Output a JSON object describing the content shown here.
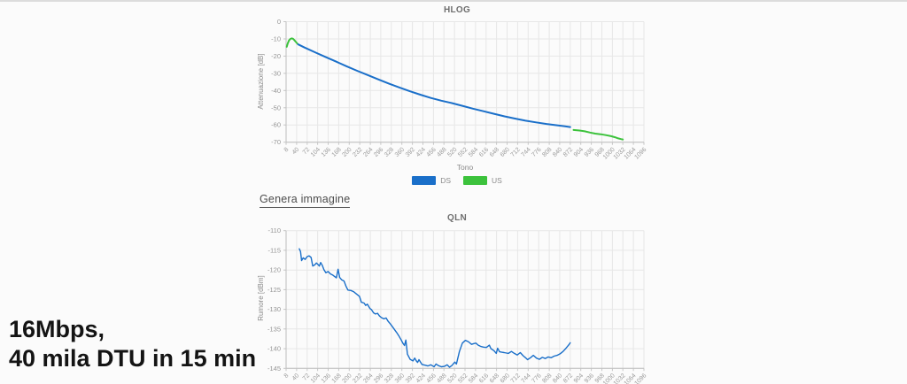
{
  "page": {
    "background": "#fbfbfb",
    "top_border_color": "#dcdcdc"
  },
  "annotation": {
    "line1": "16Mbps,",
    "line2": "40 mila DTU in 15 min"
  },
  "genera_link": {
    "label": "Genera immagine"
  },
  "chart_data": [
    {
      "id": "hlog",
      "type": "line",
      "title": "HLOG",
      "xlabel": "Tono",
      "ylabel": "Attenuazione [dB]",
      "xlim": [
        8,
        1096
      ],
      "ylim": [
        -70,
        0
      ],
      "grid": true,
      "x_ticks": [
        8,
        40,
        72,
        104,
        136,
        168,
        200,
        232,
        264,
        296,
        328,
        360,
        392,
        424,
        456,
        488,
        520,
        552,
        584,
        616,
        648,
        680,
        712,
        744,
        776,
        808,
        840,
        872,
        904,
        936,
        968,
        1000,
        1032,
        1064,
        1096
      ],
      "y_ticks": [
        0,
        -10,
        -20,
        -30,
        -40,
        -50,
        -60,
        -70
      ],
      "legend": {
        "position": "bottom",
        "entries": [
          {
            "name": "DS",
            "color": "#1a6fc9"
          },
          {
            "name": "US",
            "color": "#3cc23c"
          }
        ]
      },
      "series": [
        {
          "name": "US",
          "color": "#3cc23c",
          "points": [
            [
              10,
              -14.6
            ],
            [
              13,
              -12.6
            ],
            [
              17,
              -10.9
            ],
            [
              21,
              -10.0
            ],
            [
              25,
              -9.7
            ],
            [
              29,
              -9.9
            ],
            [
              33,
              -10.7
            ],
            [
              37,
              -11.6
            ],
            [
              43,
              -12.9
            ]
          ]
        },
        {
          "name": "DS",
          "color": "#1a6fc9",
          "points": [
            [
              45,
              -13.2
            ],
            [
              64,
              -15.0
            ],
            [
              96,
              -17.8
            ],
            [
              128,
              -20.5
            ],
            [
              160,
              -23.2
            ],
            [
              192,
              -25.9
            ],
            [
              224,
              -28.5
            ],
            [
              256,
              -31.0
            ],
            [
              288,
              -33.5
            ],
            [
              320,
              -35.9
            ],
            [
              352,
              -38.2
            ],
            [
              384,
              -40.4
            ],
            [
              416,
              -42.4
            ],
            [
              448,
              -44.3
            ],
            [
              480,
              -45.9
            ],
            [
              512,
              -47.3
            ],
            [
              544,
              -48.9
            ],
            [
              576,
              -50.5
            ],
            [
              608,
              -52.0
            ],
            [
              640,
              -53.5
            ],
            [
              672,
              -55.0
            ],
            [
              704,
              -56.3
            ],
            [
              736,
              -57.5
            ],
            [
              768,
              -58.5
            ],
            [
              800,
              -59.4
            ],
            [
              832,
              -60.2
            ],
            [
              856,
              -60.8
            ],
            [
              872,
              -61.2
            ]
          ]
        },
        {
          "name": "US",
          "color": "#3cc23c",
          "points": [
            [
              882,
              -62.9
            ],
            [
              900,
              -63.2
            ],
            [
              916,
              -63.7
            ],
            [
              932,
              -64.4
            ],
            [
              948,
              -65.0
            ],
            [
              964,
              -65.4
            ],
            [
              980,
              -65.9
            ],
            [
              996,
              -66.5
            ],
            [
              1008,
              -67.1
            ],
            [
              1018,
              -67.8
            ],
            [
              1026,
              -68.2
            ],
            [
              1032,
              -68.4
            ]
          ]
        }
      ]
    },
    {
      "id": "qln",
      "type": "line",
      "title": "QLN",
      "xlabel": "",
      "ylabel": "Rumore [dBm]",
      "xlim": [
        8,
        1096
      ],
      "ylim": [
        -145,
        -110
      ],
      "grid": true,
      "x_ticks": [
        8,
        40,
        72,
        104,
        136,
        168,
        200,
        232,
        264,
        296,
        328,
        360,
        392,
        424,
        456,
        488,
        520,
        552,
        584,
        616,
        648,
        680,
        712,
        744,
        776,
        808,
        840,
        872,
        904,
        936,
        968,
        1000,
        1032,
        1064,
        1096
      ],
      "y_ticks": [
        -110,
        -115,
        -120,
        -125,
        -130,
        -135,
        -140,
        -145
      ],
      "series": [
        {
          "name": "DS",
          "color": "#1a6fc9",
          "points": [
            [
              48,
              -114.6
            ],
            [
              52,
              -115.3
            ],
            [
              55,
              -117.6
            ],
            [
              60,
              -116.9
            ],
            [
              66,
              -117.3
            ],
            [
              72,
              -116.6
            ],
            [
              78,
              -116.4
            ],
            [
              84,
              -116.8
            ],
            [
              89,
              -119.0
            ],
            [
              95,
              -118.7
            ],
            [
              100,
              -118.2
            ],
            [
              105,
              -118.6
            ],
            [
              109,
              -119.0
            ],
            [
              113,
              -118.1
            ],
            [
              118,
              -118.8
            ],
            [
              123,
              -119.9
            ],
            [
              129,
              -120.7
            ],
            [
              136,
              -120.4
            ],
            [
              143,
              -121.0
            ],
            [
              150,
              -121.3
            ],
            [
              156,
              -121.7
            ],
            [
              161,
              -122.0
            ],
            [
              166,
              -119.8
            ],
            [
              171,
              -121.9
            ],
            [
              177,
              -122.5
            ],
            [
              184,
              -122.8
            ],
            [
              190,
              -124.1
            ],
            [
              196,
              -125.1
            ],
            [
              205,
              -125.2
            ],
            [
              213,
              -125.5
            ],
            [
              222,
              -126.1
            ],
            [
              231,
              -126.7
            ],
            [
              237,
              -128.2
            ],
            [
              245,
              -128.4
            ],
            [
              250,
              -129.0
            ],
            [
              255,
              -128.7
            ],
            [
              263,
              -129.8
            ],
            [
              268,
              -130.1
            ],
            [
              274,
              -130.9
            ],
            [
              280,
              -131.2
            ],
            [
              286,
              -131.0
            ],
            [
              292,
              -131.7
            ],
            [
              298,
              -132.1
            ],
            [
              305,
              -132.4
            ],
            [
              312,
              -132.2
            ],
            [
              318,
              -133.0
            ],
            [
              325,
              -133.7
            ],
            [
              332,
              -134.5
            ],
            [
              339,
              -135.3
            ],
            [
              344,
              -135.9
            ],
            [
              352,
              -136.9
            ],
            [
              358,
              -137.8
            ],
            [
              363,
              -138.6
            ],
            [
              368,
              -139.2
            ],
            [
              372,
              -137.8
            ],
            [
              377,
              -141.4
            ],
            [
              385,
              -142.7
            ],
            [
              394,
              -143.1
            ],
            [
              399,
              -142.4
            ],
            [
              404,
              -143.1
            ],
            [
              408,
              -143.5
            ],
            [
              412,
              -142.8
            ],
            [
              421,
              -144.0
            ],
            [
              430,
              -144.2
            ],
            [
              439,
              -144.4
            ],
            [
              448,
              -144.1
            ],
            [
              458,
              -144.6
            ],
            [
              464,
              -143.9
            ],
            [
              471,
              -144.3
            ],
            [
              480,
              -144.6
            ],
            [
              489,
              -144.5
            ],
            [
              498,
              -144.1
            ],
            [
              505,
              -144.7
            ],
            [
              512,
              -144.3
            ],
            [
              521,
              -143.4
            ],
            [
              526,
              -143.9
            ],
            [
              535,
              -140.7
            ],
            [
              544,
              -138.6
            ],
            [
              553,
              -137.9
            ],
            [
              562,
              -138.2
            ],
            [
              572,
              -138.9
            ],
            [
              579,
              -138.7
            ],
            [
              585,
              -138.6
            ],
            [
              592,
              -139.1
            ],
            [
              599,
              -139.4
            ],
            [
              608,
              -139.6
            ],
            [
              617,
              -139.7
            ],
            [
              626,
              -139.1
            ],
            [
              631,
              -140.0
            ],
            [
              635,
              -140.2
            ],
            [
              641,
              -140.6
            ],
            [
              647,
              -141.2
            ],
            [
              651,
              -139.9
            ],
            [
              657,
              -140.8
            ],
            [
              664,
              -140.9
            ],
            [
              671,
              -141.0
            ],
            [
              678,
              -141.1
            ],
            [
              684,
              -141.2
            ],
            [
              693,
              -140.7
            ],
            [
              702,
              -141.2
            ],
            [
              711,
              -141.6
            ],
            [
              720,
              -141.0
            ],
            [
              729,
              -141.8
            ],
            [
              736,
              -142.3
            ],
            [
              742,
              -142.8
            ],
            [
              751,
              -142.3
            ],
            [
              760,
              -141.7
            ],
            [
              769,
              -142.4
            ],
            [
              778,
              -142.7
            ],
            [
              787,
              -142.2
            ],
            [
              796,
              -142.5
            ],
            [
              805,
              -142.1
            ],
            [
              814,
              -142.3
            ],
            [
              823,
              -141.9
            ],
            [
              832,
              -141.7
            ],
            [
              841,
              -141.3
            ],
            [
              850,
              -140.7
            ],
            [
              859,
              -139.9
            ],
            [
              868,
              -139.0
            ],
            [
              872,
              -138.5
            ]
          ]
        }
      ]
    }
  ]
}
